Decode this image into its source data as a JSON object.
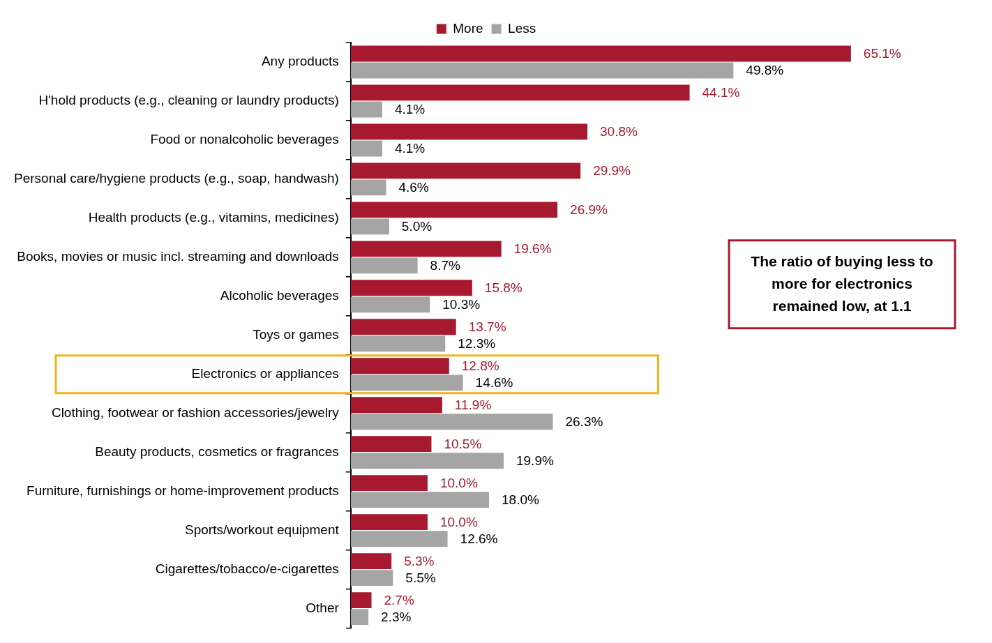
{
  "chart_data": {
    "type": "bar",
    "orientation": "horizontal",
    "categories": [
      "Any products",
      "H'hold products (e.g., cleaning or laundry products)",
      "Food or nonalcoholic beverages",
      "Personal care/hygiene products (e.g., soap, handwash)",
      "Health products (e.g., vitamins, medicines)",
      "Books, movies or music incl. streaming and downloads",
      "Alcoholic beverages",
      "Toys or games",
      "Electronics or appliances",
      "Clothing, footwear or fashion accessories/jewelry",
      "Beauty products, cosmetics or fragrances",
      "Furniture, furnishings or home-improvement products",
      "Sports/workout equipment",
      "Cigarettes/tobacco/e-cigarettes",
      "Other"
    ],
    "series": [
      {
        "name": "More",
        "color": "#A6192E",
        "values": [
          65.1,
          44.1,
          30.8,
          29.9,
          26.9,
          19.6,
          15.8,
          13.7,
          12.8,
          11.9,
          10.5,
          10.0,
          10.0,
          5.3,
          2.7
        ],
        "value_labels": [
          "65.1%",
          "44.1%",
          "30.8%",
          "29.9%",
          "26.9%",
          "19.6%",
          "15.8%",
          "13.7%",
          "12.8%",
          "11.9%",
          "10.5%",
          "10.0%",
          "10.0%",
          "5.3%",
          "2.7%"
        ]
      },
      {
        "name": "Less",
        "color": "#A5A5A5",
        "values": [
          49.8,
          4.1,
          4.1,
          4.6,
          5.0,
          8.7,
          10.3,
          12.3,
          14.6,
          26.3,
          19.9,
          18.0,
          12.6,
          5.5,
          2.3
        ],
        "value_labels": [
          "49.8%",
          "4.1%",
          "4.1%",
          "4.6%",
          "5.0%",
          "8.7%",
          "10.3%",
          "12.3%",
          "14.6%",
          "26.3%",
          "19.9%",
          "18.0%",
          "12.6%",
          "5.5%",
          "2.3%"
        ]
      }
    ],
    "xlim": [
      0,
      80
    ],
    "data_labels": true,
    "tick_labels": "y",
    "grid": false,
    "legend": "top",
    "annotations": [
      {
        "text": "The ratio of buying less to more for electronics remained low, at 1.1",
        "category": "Electronics or appliances"
      }
    ]
  }
}
